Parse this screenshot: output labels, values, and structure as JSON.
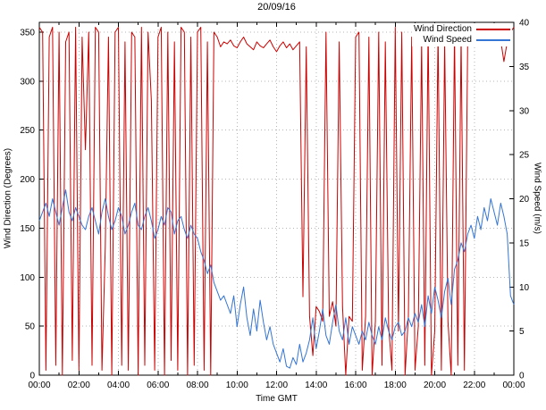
{
  "title": "20/09/16",
  "axes": {
    "x": {
      "label": "Time GMT",
      "range_minutes": [
        0,
        1440
      ],
      "tick_interval_minutes": 120,
      "minor_tick_interval_minutes": 60,
      "tick_labels": [
        "00:00",
        "02:00",
        "04:00",
        "06:00",
        "08:00",
        "10:00",
        "12:00",
        "14:00",
        "16:00",
        "18:00",
        "20:00",
        "22:00",
        "00:00"
      ]
    },
    "y_left": {
      "label": "Wind Direction (Degrees)",
      "range": [
        0,
        360
      ],
      "ticks": [
        0,
        50,
        100,
        150,
        200,
        250,
        300,
        350
      ]
    },
    "y_right": {
      "label": "Wind Speed (m/s)",
      "range": [
        0,
        40
      ],
      "ticks": [
        0,
        5,
        10,
        15,
        20,
        25,
        30,
        35,
        40
      ]
    }
  },
  "legend": [
    {
      "label": "Wind Direction",
      "color": "#cc0000"
    },
    {
      "label": "Wind Speed",
      "color": "#3575d3"
    }
  ],
  "colors": {
    "direction": "#cc0000",
    "speed": "#3575d3",
    "grid": "#b5b5b5",
    "axis": "#000000",
    "background": "#ffffff"
  },
  "chart_data": {
    "type": "line",
    "title": "20/09/16",
    "xlabel": "Time GMT",
    "x_unit": "minutes from 00:00 GMT",
    "x_start_minutes": 0,
    "x_step_minutes": 10,
    "grid": true,
    "legend_position": "top-right",
    "series": [
      {
        "name": "Wind Direction",
        "axis": "left",
        "ylabel": "Wind Direction (Degrees)",
        "ylim": [
          0,
          360
        ],
        "color": "#cc0000",
        "values": [
          355,
          350,
          5,
          345,
          355,
          10,
          350,
          0,
          340,
          350,
          15,
          355,
          5,
          345,
          230,
          350,
          10,
          355,
          350,
          5,
          130,
          345,
          0,
          350,
          355,
          10,
          340,
          5,
          350,
          345,
          0,
          355,
          10,
          350,
          280,
          5,
          345,
          355,
          0,
          350,
          15,
          340,
          5,
          355,
          350,
          0,
          345,
          10,
          350,
          355,
          5,
          340,
          0,
          350,
          345,
          335,
          340,
          338,
          342,
          336,
          334,
          340,
          345,
          338,
          335,
          332,
          340,
          336,
          334,
          338,
          342,
          335,
          330,
          336,
          340,
          334,
          338,
          332,
          336,
          340,
          80,
          335,
          60,
          20,
          70,
          65,
          55,
          350,
          60,
          75,
          50,
          340,
          70,
          0,
          60,
          55,
          345,
          350,
          5,
          60,
          345,
          0,
          55,
          350,
          10,
          340,
          50,
          5,
          355,
          45,
          350,
          0,
          60,
          345,
          5,
          50,
          340,
          10,
          355,
          0,
          45,
          350,
          5,
          340,
          55,
          0,
          350,
          10,
          345,
          5,
          345,
          350,
          348,
          352,
          346,
          350,
          344,
          348,
          350,
          346,
          342,
          320,
          340,
          350,
          355
        ]
      },
      {
        "name": "Wind Speed",
        "axis": "right",
        "ylabel": "Wind Speed (m/s)",
        "ylim": [
          0,
          40
        ],
        "color": "#3575d3",
        "values": [
          17.5,
          18.5,
          19.5,
          18,
          20,
          18.5,
          17,
          19,
          21,
          18.5,
          17.5,
          19,
          18,
          17,
          16.5,
          18,
          19,
          17.5,
          16,
          18.5,
          20,
          18,
          16.5,
          17.5,
          19,
          18,
          16,
          17,
          18.5,
          19.5,
          17,
          16.5,
          18,
          19,
          17.5,
          15.5,
          16.5,
          18,
          17,
          19,
          18.5,
          16,
          17.5,
          18,
          16.5,
          15.5,
          17,
          16,
          15.5,
          14,
          13,
          11.5,
          12.5,
          10.5,
          9.5,
          8.5,
          9,
          8,
          7,
          9,
          5.5,
          8,
          10,
          6.5,
          4.5,
          7.5,
          5,
          8.5,
          6,
          4,
          5.5,
          3.5,
          2.5,
          1.5,
          3,
          1,
          0.8,
          2,
          1.2,
          3.5,
          1.5,
          2.5,
          4,
          6.5,
          3,
          5,
          7.5,
          4.5,
          3.5,
          6,
          8,
          5,
          4,
          6.5,
          3.5,
          5.5,
          4.5,
          3.5,
          5,
          4,
          6,
          4.5,
          3.5,
          5.5,
          4,
          6.5,
          5,
          4,
          5.5,
          6,
          4.5,
          5,
          6.5,
          5.5,
          7,
          6,
          8,
          5.5,
          9,
          7,
          10,
          8.5,
          6.5,
          9.5,
          11,
          8,
          12,
          13,
          15,
          14,
          16,
          17,
          15.5,
          18,
          16.5,
          19,
          17.5,
          20,
          18.5,
          17,
          19.5,
          18,
          16,
          9,
          8
        ]
      }
    ]
  }
}
